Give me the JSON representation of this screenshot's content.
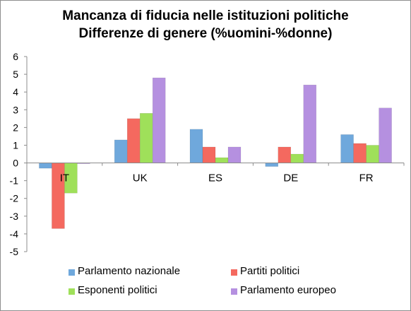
{
  "chart_data": {
    "type": "bar",
    "title": "Mancanza di fiducia nelle istituzioni politiche",
    "subtitle": "Differenze di genere (%uomini-%donne)",
    "categories": [
      "IT",
      "UK",
      "ES",
      "DE",
      "FR"
    ],
    "ylim": [
      -5,
      6
    ],
    "yticks": [
      "-5",
      "-4",
      "-3",
      "-2",
      "-1",
      "0",
      "1",
      "2",
      "3",
      "4",
      "5",
      "6"
    ],
    "grid": false,
    "legend_position": "bottom",
    "series": [
      {
        "name": "Parlamento nazionale",
        "color": "#6fa8dc",
        "values": [
          -0.3,
          1.3,
          1.9,
          -0.2,
          1.6
        ]
      },
      {
        "name": "Partiti politici",
        "color": "#f4695f",
        "values": [
          -3.7,
          2.5,
          0.9,
          0.9,
          1.1
        ]
      },
      {
        "name": "Esponenti politici",
        "color": "#9fe05a",
        "values": [
          -1.7,
          2.8,
          0.3,
          0.5,
          1.0
        ]
      },
      {
        "name": "Parlamento europeo",
        "color": "#b590e0",
        "values": [
          0.0,
          4.8,
          0.9,
          4.4,
          3.1
        ]
      }
    ]
  }
}
